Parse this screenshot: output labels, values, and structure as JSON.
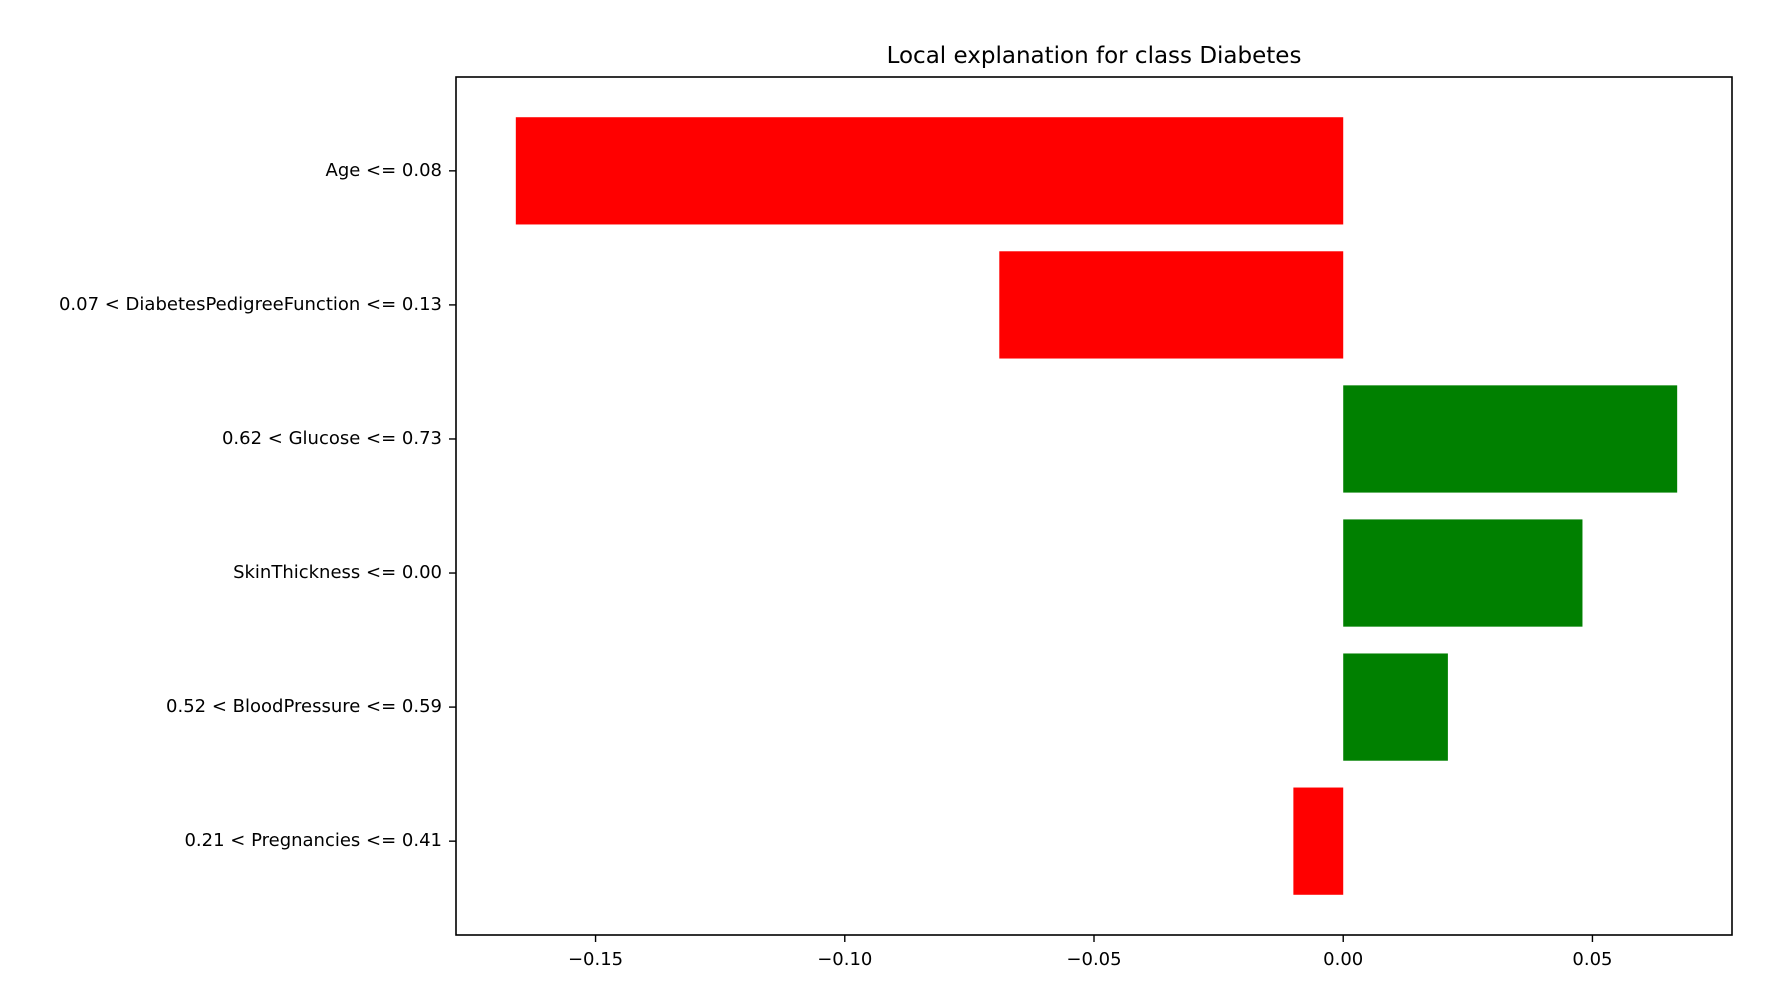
{
  "chart_data": {
    "type": "bar",
    "orientation": "horizontal",
    "title": "Local explanation for class Diabetes",
    "xlabel": "",
    "ylabel": "",
    "xlim": [
      -0.178,
      0.078
    ],
    "grid": false,
    "legend": "none",
    "x_ticks": [
      -0.15,
      -0.1,
      -0.05,
      0.0,
      0.05
    ],
    "x_tick_labels": [
      "−0.15",
      "−0.10",
      "−0.05",
      "0.00",
      "0.05"
    ],
    "categories": [
      "Age <= 0.08",
      "0.07 < DiabetesPedigreeFunction <= 0.13",
      "0.62 < Glucose <= 0.73",
      "SkinThickness <= 0.00",
      "0.52 < BloodPressure <= 0.59",
      "0.21 < Pregnancies <= 0.41"
    ],
    "values": [
      -0.166,
      -0.069,
      0.067,
      0.048,
      0.021,
      -0.01
    ],
    "colors": {
      "negative": "#ff0000",
      "positive": "#008000"
    }
  }
}
